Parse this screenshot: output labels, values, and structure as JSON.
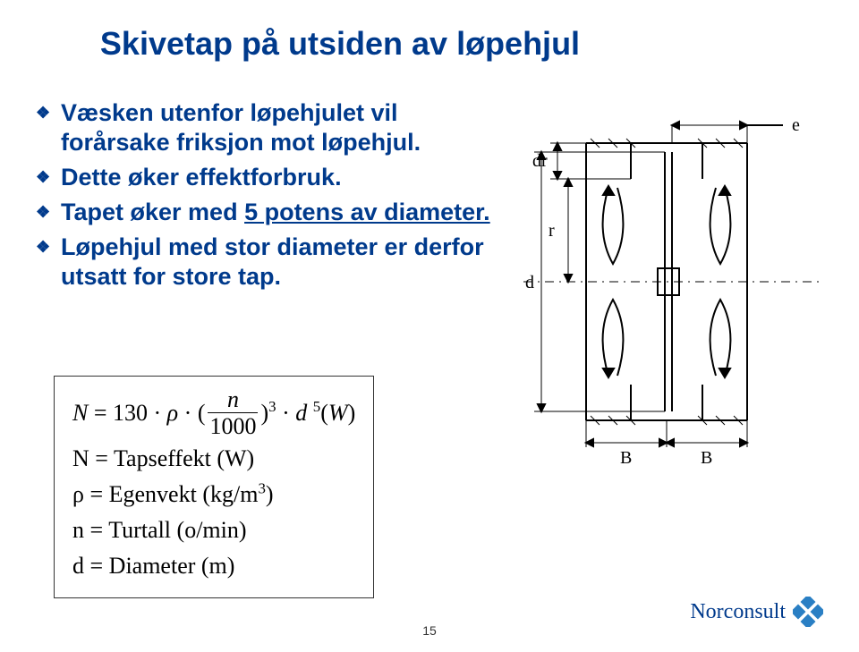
{
  "title": "Skivetap på utsiden av løpehjul",
  "bullets": [
    {
      "text": "Væsken utenfor løpehjulet vil forårsake friksjon mot løpehjul."
    },
    {
      "text": "Dette øker effektforbruk."
    },
    {
      "text_html": "Tapet øker med <span class=\"underline\">5 potens av diameter.</span>"
    },
    {
      "text": "Løpehjul med stor diameter er derfor utsatt for store tap."
    }
  ],
  "formula": {
    "lines": [
      "<span class=\"ital\">N</span> = 130 &middot; <span class=\"ital\">&rho;</span> &middot; (<span class=\"frac\"><span class=\"num\">n</span><span class=\"den\">1000</span></span>)<sup>3</sup> &middot; <span class=\"ital\">d</span>&nbsp;<sup>5</sup>(<span class=\"ital\">W</span>)",
      "N = Tapseffekt (W)",
      "&rho; = Egenvekt (kg/m<sup>3</sup>)",
      "n = Turtall (o/min)",
      "d = Diameter (m)"
    ]
  },
  "diagram": {
    "labels": {
      "e": "e",
      "dr": "dr",
      "r": "r",
      "d": "d",
      "B1": "B",
      "B2": "B"
    },
    "stroke_color": "#000000",
    "line_width": 2
  },
  "page_number": "15",
  "logo_text": "Norconsult",
  "colors": {
    "title_blue": "#003a8c",
    "body_blue": "#003a8c",
    "black": "#000000",
    "background": "#ffffff"
  }
}
